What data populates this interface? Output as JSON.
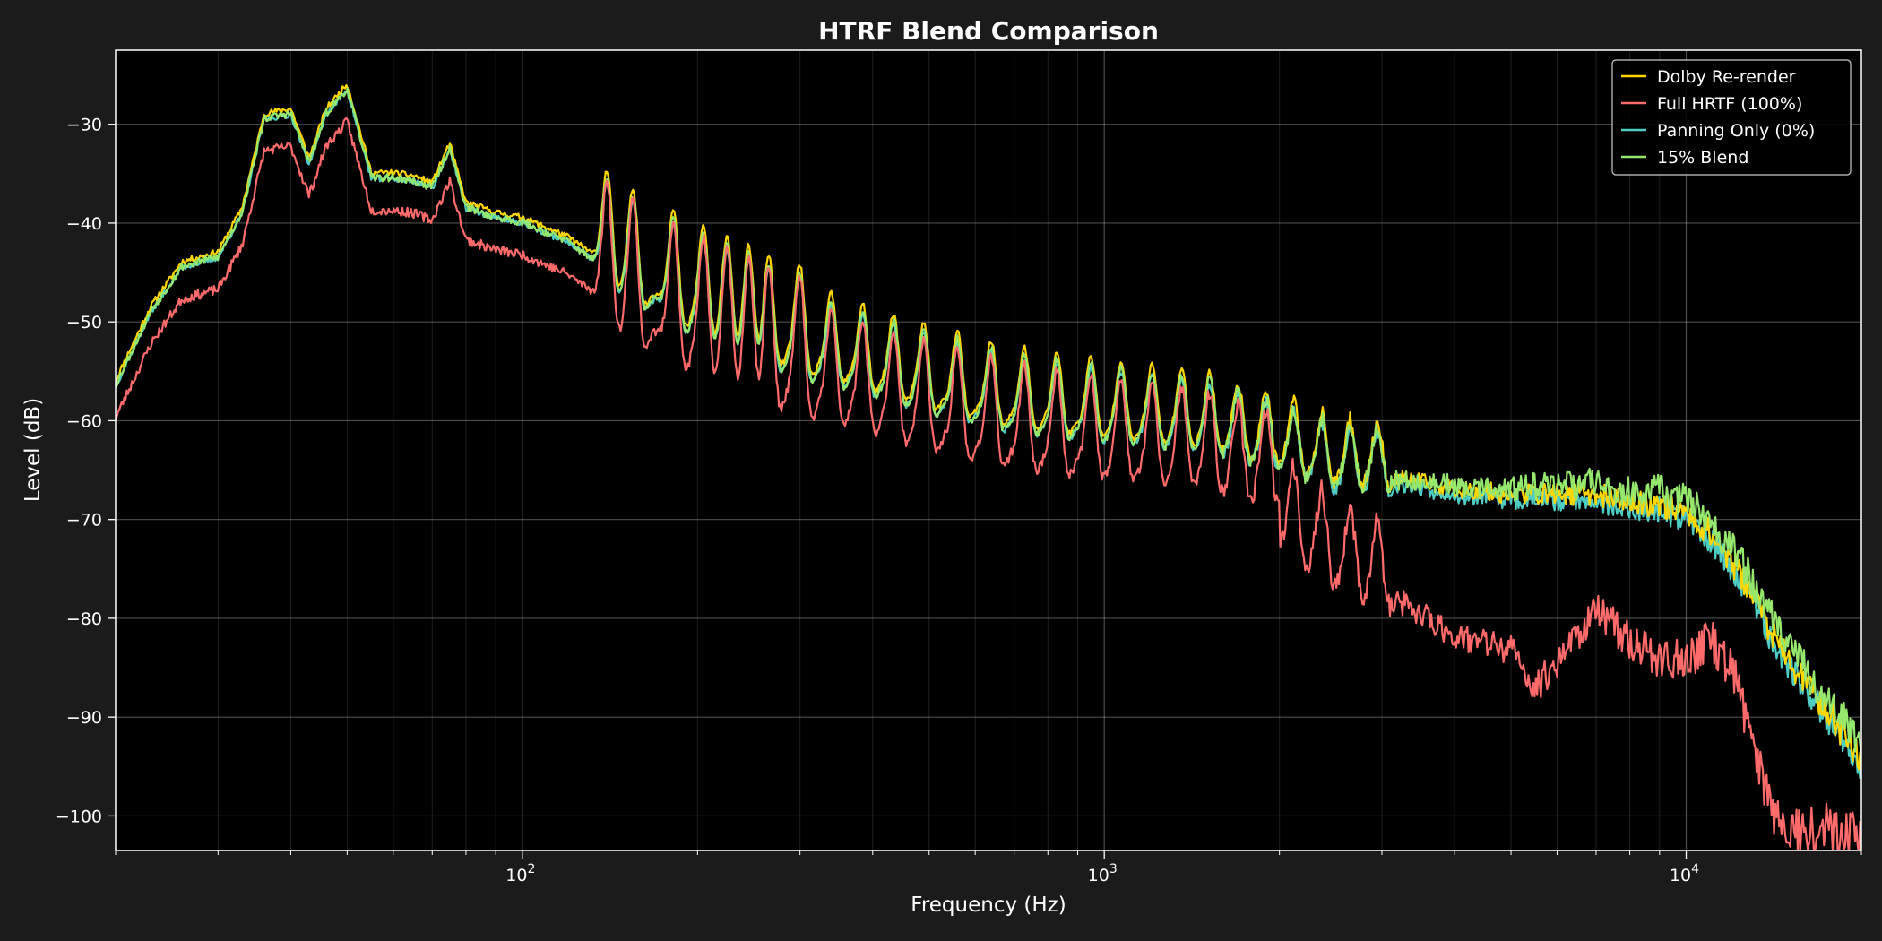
{
  "chart_data": {
    "type": "line",
    "title": "HTRF Blend Comparison",
    "xlabel": "Frequency (Hz)",
    "ylabel": "Level (dB)",
    "xscale": "log",
    "xlim": [
      20,
      20000
    ],
    "ylim": [
      -103.5,
      -22.5
    ],
    "x_ticks": [
      {
        "value": 100,
        "mantissa": "10",
        "exp": "2"
      },
      {
        "value": 1000,
        "mantissa": "10",
        "exp": "3"
      },
      {
        "value": 10000,
        "mantissa": "10",
        "exp": "4"
      }
    ],
    "y_ticks": [
      {
        "value": -30,
        "label": "−30"
      },
      {
        "value": -40,
        "label": "−40"
      },
      {
        "value": -50,
        "label": "−50"
      },
      {
        "value": -60,
        "label": "−60"
      },
      {
        "value": -70,
        "label": "−70"
      },
      {
        "value": -80,
        "label": "−80"
      },
      {
        "value": -90,
        "label": "−90"
      },
      {
        "value": -100,
        "label": "−100"
      }
    ],
    "grid": true,
    "legend_position": "top-right",
    "base_envelope": {
      "x": [
        20,
        23,
        26,
        30,
        33,
        36,
        40,
        43,
        46,
        50,
        55,
        60,
        65,
        70,
        75,
        80,
        90,
        100,
        120,
        150,
        200,
        300,
        500,
        700,
        1000,
        1500,
        2000,
        2500,
        3000,
        4000,
        5000,
        6000,
        7000,
        8000,
        9000,
        10000,
        11000,
        12000,
        13000,
        14000,
        15000,
        16000,
        17000,
        18000,
        19000,
        20000
      ],
      "y": [
        -56.5,
        -49,
        -44.5,
        -43.5,
        -39,
        -29.5,
        -29,
        -34,
        -29,
        -26.5,
        -35.5,
        -35.5,
        -35.8,
        -36.5,
        -32.5,
        -38.5,
        -39.5,
        -40,
        -42,
        -46,
        -50,
        -54,
        -58,
        -60,
        -61,
        -62,
        -64,
        -66,
        -66,
        -67.5,
        -68,
        -68,
        -68,
        -69,
        -69,
        -70,
        -72,
        -75,
        -78,
        -82,
        -85,
        -87,
        -89,
        -91,
        -93,
        -95
      ]
    },
    "peak_frequencies_hz": [
      46,
      75,
      94,
      110,
      140,
      155,
      182,
      205,
      225,
      245,
      265,
      300,
      340,
      385,
      435,
      490,
      560,
      640,
      730,
      830,
      950,
      1070,
      1210,
      1360,
      1520,
      1700,
      1900,
      2120,
      2370,
      2650,
      2950
    ],
    "series": [
      {
        "name": "Dolby Re-render",
        "color": "#ffd700",
        "offset_db": 0.6,
        "peak_gain_db": 14,
        "noise_db": 1.0,
        "seed": 11
      },
      {
        "name": "Full HRTF (100%)",
        "color": "#ff6b6b",
        "offset_db": -3.2,
        "peak_gain_db": 18,
        "noise_db": 1.6,
        "seed": 23,
        "hf_dev_x": [
          2000,
          3000,
          4000,
          5000,
          5500,
          6000,
          7000,
          8000,
          9000,
          10000,
          11000,
          12000,
          13000,
          14000,
          15000,
          16000,
          17000,
          18000,
          19000,
          20000
        ],
        "hf_dev_y": [
          -4,
          -8,
          -11,
          -12,
          -16,
          -13,
          -8,
          -10,
          -12,
          -11,
          -7,
          -7,
          -11,
          -14,
          -13,
          -11,
          -9,
          -7,
          -5,
          -4
        ]
      },
      {
        "name": "Panning Only (0%)",
        "color": "#4ecdc4",
        "offset_db": 0,
        "peak_gain_db": 13,
        "noise_db": 1.0,
        "seed": 37
      },
      {
        "name": "15% Blend",
        "color": "#95e86d",
        "offset_db": 0.1,
        "peak_gain_db": 13.5,
        "noise_db": 1.3,
        "seed": 53,
        "hf_boost_db": 1.8
      }
    ]
  }
}
